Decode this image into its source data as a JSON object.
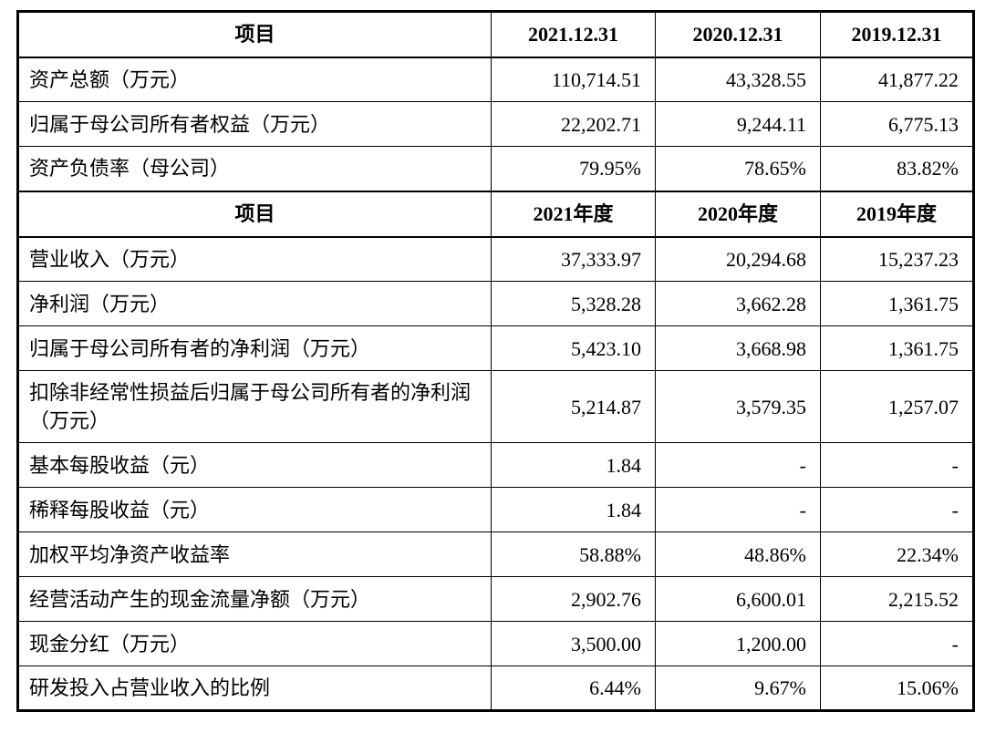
{
  "table": {
    "text_color": "#000000",
    "border_color": "#000000",
    "background_color": "#ffffff",
    "sections": [
      {
        "header": {
          "item": "项目",
          "cols": [
            "2021.12.31",
            "2020.12.31",
            "2019.12.31"
          ]
        },
        "rows": [
          {
            "label": "资产总额（万元）",
            "values": [
              "110,714.51",
              "43,328.55",
              "41,877.22"
            ]
          },
          {
            "label": "归属于母公司所有者权益（万元）",
            "values": [
              "22,202.71",
              "9,244.11",
              "6,775.13"
            ]
          },
          {
            "label": "资产负债率（母公司）",
            "values": [
              "79.95%",
              "78.65%",
              "83.82%"
            ]
          }
        ]
      },
      {
        "header": {
          "item": "项目",
          "cols": [
            "2021年度",
            "2020年度",
            "2019年度"
          ]
        },
        "rows": [
          {
            "label": "营业收入（万元）",
            "values": [
              "37,333.97",
              "20,294.68",
              "15,237.23"
            ]
          },
          {
            "label": "净利润（万元）",
            "values": [
              "5,328.28",
              "3,662.28",
              "1,361.75"
            ]
          },
          {
            "label": "归属于母公司所有者的净利润（万元）",
            "values": [
              "5,423.10",
              "3,668.98",
              "1,361.75"
            ]
          },
          {
            "label": "扣除非经常性损益后归属于母公司所有者的净利润（万元）",
            "values": [
              "5,214.87",
              "3,579.35",
              "1,257.07"
            ]
          },
          {
            "label": "基本每股收益（元）",
            "values": [
              "1.84",
              "-",
              "-"
            ]
          },
          {
            "label": "稀释每股收益（元）",
            "values": [
              "1.84",
              "-",
              "-"
            ]
          },
          {
            "label": "加权平均净资产收益率",
            "values": [
              "58.88%",
              "48.86%",
              "22.34%"
            ]
          },
          {
            "label": "经营活动产生的现金流量净额（万元）",
            "values": [
              "2,902.76",
              "6,600.01",
              "2,215.52"
            ]
          },
          {
            "label": "现金分红（万元）",
            "values": [
              "3,500.00",
              "1,200.00",
              "-"
            ]
          },
          {
            "label": "研发投入占营业收入的比例",
            "values": [
              "6.44%",
              "9.67%",
              "15.06%"
            ]
          }
        ]
      }
    ]
  }
}
